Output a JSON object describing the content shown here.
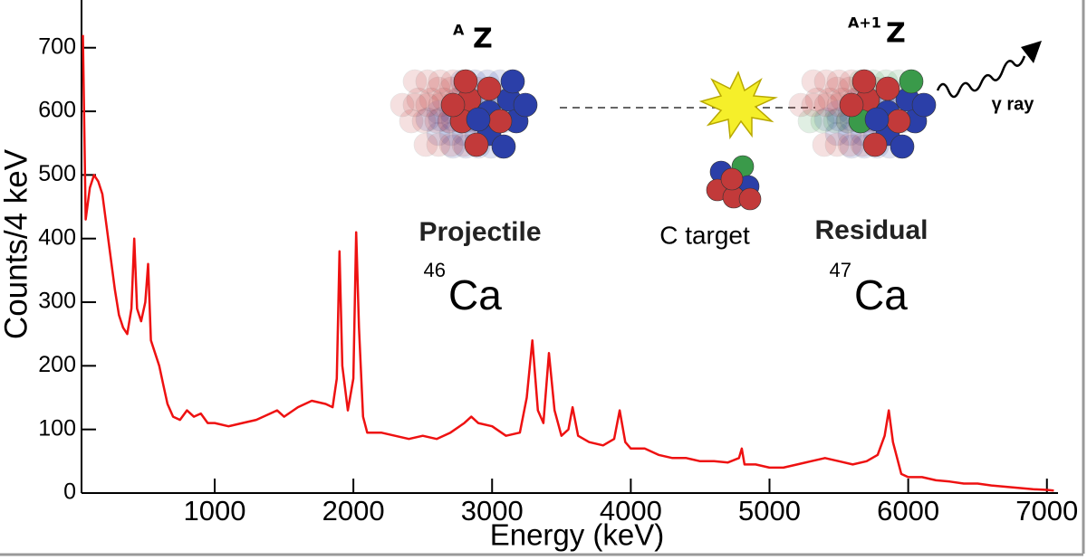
{
  "chart_data": {
    "type": "line",
    "x_label": "Energy (keV)",
    "y_label": "Counts/4 keV",
    "annotations": [
      "A",
      "Z",
      "Projectile",
      "46",
      "Ca",
      "C target",
      "A+1",
      "Z",
      "Residual",
      "47",
      "Ca",
      "γ ray"
    ],
    "color": "#ee1111",
    "xlim": [
      40,
      7080
    ],
    "ylim": [
      0,
      775
    ],
    "xticks": [
      1000,
      2000,
      3000,
      4000,
      5000,
      6000,
      7000
    ],
    "yticks": [
      0,
      100,
      200,
      300,
      400,
      500,
      600,
      700
    ],
    "x": [
      50,
      70,
      100,
      130,
      160,
      190,
      220,
      250,
      280,
      310,
      340,
      370,
      400,
      420,
      440,
      470,
      500,
      520,
      540,
      570,
      600,
      630,
      660,
      700,
      750,
      800,
      850,
      900,
      950,
      1000,
      1100,
      1200,
      1300,
      1400,
      1450,
      1500,
      1600,
      1700,
      1800,
      1850,
      1880,
      1900,
      1920,
      1960,
      2000,
      2020,
      2040,
      2070,
      2100,
      2200,
      2300,
      2400,
      2500,
      2600,
      2700,
      2800,
      2850,
      2900,
      3000,
      3100,
      3200,
      3250,
      3290,
      3330,
      3370,
      3410,
      3450,
      3500,
      3550,
      3580,
      3620,
      3700,
      3800,
      3880,
      3920,
      3960,
      4000,
      4100,
      4200,
      4300,
      4400,
      4500,
      4600,
      4700,
      4780,
      4800,
      4820,
      4900,
      5000,
      5100,
      5200,
      5300,
      5400,
      5500,
      5600,
      5700,
      5780,
      5830,
      5860,
      5890,
      5950,
      6000,
      6100,
      6200,
      6300,
      6400,
      6500,
      6600,
      6700,
      6800,
      6900,
      7000,
      7050
    ],
    "values": [
      720,
      430,
      480,
      500,
      490,
      470,
      420,
      370,
      320,
      280,
      260,
      250,
      290,
      400,
      290,
      270,
      300,
      360,
      240,
      220,
      200,
      170,
      140,
      120,
      115,
      130,
      120,
      125,
      110,
      110,
      105,
      110,
      115,
      125,
      130,
      120,
      135,
      145,
      140,
      135,
      180,
      380,
      200,
      130,
      180,
      410,
      260,
      120,
      95,
      95,
      90,
      85,
      90,
      85,
      95,
      110,
      120,
      110,
      105,
      90,
      95,
      150,
      240,
      130,
      110,
      220,
      130,
      90,
      100,
      135,
      90,
      80,
      75,
      85,
      130,
      80,
      70,
      70,
      60,
      55,
      55,
      50,
      50,
      48,
      55,
      70,
      45,
      45,
      40,
      40,
      45,
      50,
      55,
      50,
      45,
      50,
      60,
      90,
      130,
      80,
      30,
      25,
      25,
      20,
      18,
      15,
      15,
      12,
      10,
      8,
      6,
      5,
      4
    ]
  }
}
